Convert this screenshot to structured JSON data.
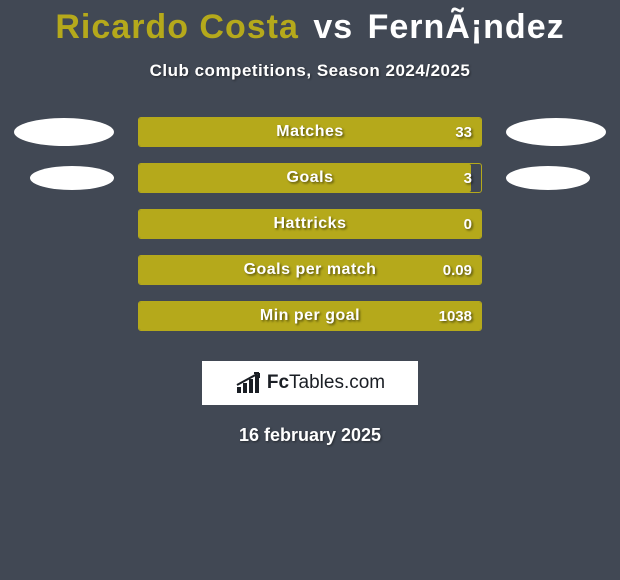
{
  "background_color": "#414854",
  "title": {
    "player1": "Ricardo Costa",
    "vs": "vs",
    "player2": "FernÃ¡ndez",
    "player1_color": "#b5a91b",
    "vs_color": "#ffffff",
    "player2_color": "#ffffff",
    "fontsize": 34
  },
  "subtitle": {
    "text": "Club competitions, Season 2024/2025",
    "color": "#ffffff",
    "fontsize": 17
  },
  "bar_style": {
    "track_width": 344,
    "track_height": 30,
    "border_color": "#b5a91b",
    "left_fill_color": "#b5a91b",
    "right_fill_color": "#ffffff",
    "label_color": "#ffffff",
    "value_color": "#ffffff",
    "label_fontsize": 16
  },
  "ellipse_style": {
    "color": "#ffffff",
    "width": 100,
    "height": 28
  },
  "rows": [
    {
      "label": "Matches",
      "value": "33",
      "left_pct": 100,
      "right_pct": 0,
      "show_left_ellipse": true,
      "show_right_ellipse": true,
      "ellipse_small": false
    },
    {
      "label": "Goals",
      "value": "3",
      "left_pct": 97,
      "right_pct": 0,
      "show_left_ellipse": true,
      "show_right_ellipse": true,
      "ellipse_small": true
    },
    {
      "label": "Hattricks",
      "value": "0",
      "left_pct": 100,
      "right_pct": 0,
      "show_left_ellipse": false,
      "show_right_ellipse": false,
      "ellipse_small": false
    },
    {
      "label": "Goals per match",
      "value": "0.09",
      "left_pct": 100,
      "right_pct": 0,
      "show_left_ellipse": false,
      "show_right_ellipse": false,
      "ellipse_small": false
    },
    {
      "label": "Min per goal",
      "value": "1038",
      "left_pct": 100,
      "right_pct": 0,
      "show_left_ellipse": false,
      "show_right_ellipse": false,
      "ellipse_small": false
    }
  ],
  "logo": {
    "brand_prefix": "Fc",
    "brand_suffix": "Tables.com",
    "box_bg": "#ffffff",
    "text_color": "#1a1e24",
    "icon_color": "#1a1e24"
  },
  "date": {
    "text": "16 february 2025",
    "color": "#ffffff",
    "fontsize": 18
  }
}
